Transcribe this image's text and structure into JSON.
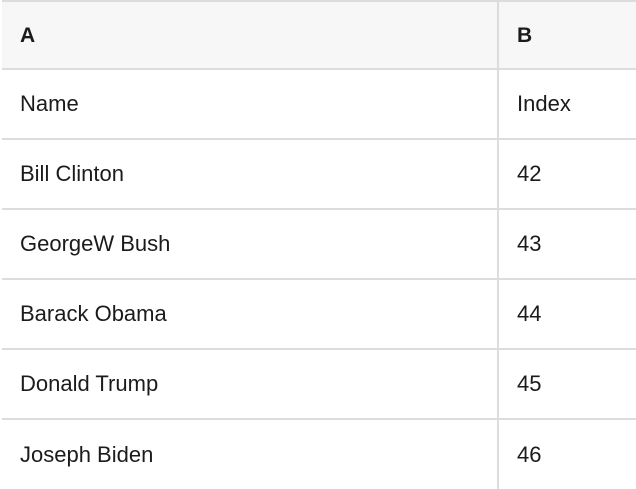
{
  "table": {
    "columns": [
      {
        "label": "A"
      },
      {
        "label": "B"
      }
    ],
    "rows": [
      [
        "Name",
        "Index"
      ],
      [
        "Bill Clinton",
        "42"
      ],
      [
        "GeorgeW Bush",
        "43"
      ],
      [
        "Barack Obama",
        "44"
      ],
      [
        "Donald Trump",
        "45"
      ],
      [
        "Joseph Biden",
        "46"
      ]
    ]
  },
  "colors": {
    "header_bg": "#f7f7f7",
    "border": "#dcdcdc",
    "text": "#1b1b1b"
  }
}
